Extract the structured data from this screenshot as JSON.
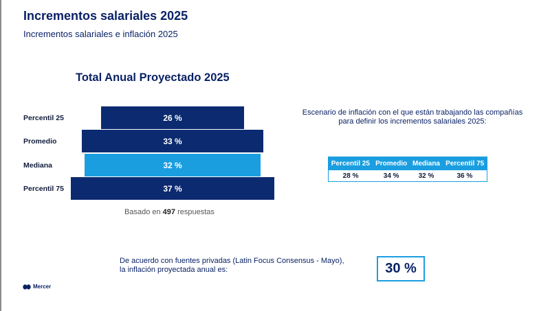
{
  "header": {
    "title": "Incrementos salariales 2025",
    "subtitle": "Incrementos salariales e inflación 2025"
  },
  "chart_data": {
    "type": "bar",
    "title": "Total Anual Proyectado 2025",
    "categories": [
      "Percentil 25",
      "Promedio",
      "Mediana",
      "Percentil 75"
    ],
    "values": [
      26,
      33,
      32,
      37
    ],
    "value_labels": [
      "26 %",
      "33 %",
      "32 %",
      "37 %"
    ],
    "unit": "%",
    "colors": [
      "#0b2a70",
      "#0b2a70",
      "#1a9ee0",
      "#0b2a70"
    ],
    "note_prefix": "Basado en ",
    "note_count": "497",
    "note_suffix": " respuestas"
  },
  "inflation": {
    "description_line1": "Escenario de inflación con el que están trabajando las compañías",
    "description_line2": "para definir los incrementos salariales 2025:",
    "headers": [
      "Percentil 25",
      "Promedio",
      "Mediana",
      "Percentil 75"
    ],
    "values": [
      "28 %",
      "34 %",
      "32 %",
      "36 %"
    ]
  },
  "footer": {
    "line1": "De acuerdo con fuentes privadas (Latin Focus Consensus - Mayo),",
    "line2": "la inflación proyectada anual es:",
    "projected_inflation": "30 %",
    "brand": "Mercer"
  }
}
